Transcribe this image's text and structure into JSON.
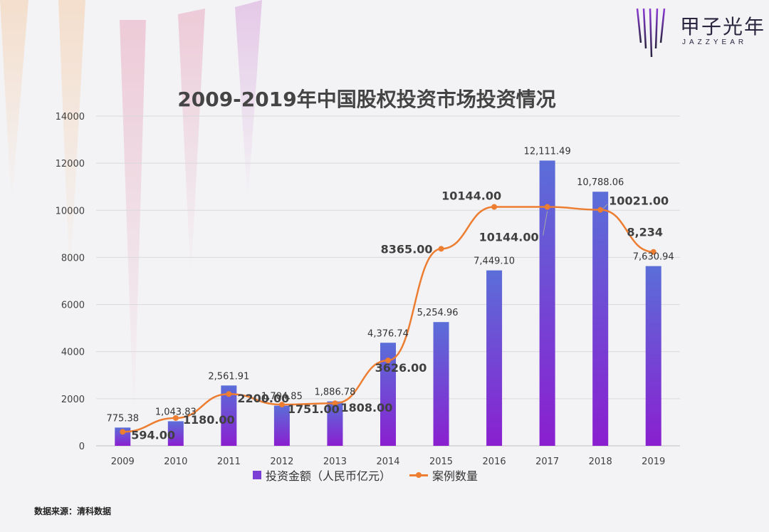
{
  "brand": {
    "name": "甲子光年",
    "sub": "JAZZYEAR"
  },
  "source_text": "数据来源：清科数据",
  "colors": {
    "bar_top": "#5b6ed8",
    "bar_bottom": "#8a1fd0",
    "line": "#ed7d31",
    "axis_text": "#404040",
    "grid": "#d9d9d9"
  },
  "chart_data": {
    "type": "bar",
    "title": "2009-2019年中国股权投资市场投资情况",
    "categories": [
      "2009",
      "2010",
      "2011",
      "2012",
      "2013",
      "2014",
      "2015",
      "2016",
      "2017",
      "2018",
      "2019"
    ],
    "ylim": [
      0,
      14000
    ],
    "yticks": [
      "0",
      "2000",
      "4000",
      "6000",
      "8000",
      "10000",
      "12000",
      "14000"
    ],
    "legend_position": "bottom",
    "series": [
      {
        "name": "投资金额（人民币亿元）",
        "kind": "bar",
        "values": [
          775.38,
          1043.83,
          2561.91,
          1704.85,
          1886.78,
          4376.74,
          5254.96,
          7449.1,
          12111.49,
          10788.06,
          7630.94
        ],
        "labels": [
          "775.38",
          "1,043.83",
          "2,561.91",
          "1,704.85",
          "1,886.78",
          "4,376.74",
          "5,254.96",
          "7,449.10",
          "12,111.49",
          "10,788.06",
          "7,630.94"
        ]
      },
      {
        "name": "案例数量",
        "kind": "line",
        "values": [
          594,
          1180,
          2200,
          1751,
          1808,
          3626,
          8365,
          10144,
          10144,
          10021,
          8234
        ],
        "labels": [
          "594.00",
          "1180.00",
          "2200.00",
          "1751.00",
          "1808.00",
          "3626.00",
          "8365.00",
          "10144.00",
          "10144.00",
          "10021.00",
          "8,234"
        ]
      }
    ]
  }
}
